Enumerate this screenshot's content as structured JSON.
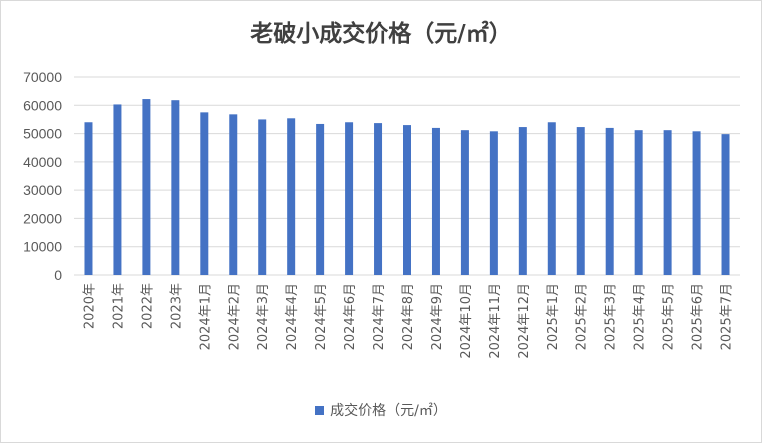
{
  "chart_data": {
    "type": "bar",
    "title": "老破小成交价格（元/㎡）",
    "categories": [
      "2020年",
      "2021年",
      "2022年",
      "2023年",
      "2024年1月",
      "2024年2月",
      "2024年3月",
      "2024年4月",
      "2024年5月",
      "2024年6月",
      "2024年7月",
      "2024年8月",
      "2024年9月",
      "2024年10月",
      "2024年11月",
      "2024年12月",
      "2025年1月",
      "2025年2月",
      "2025年3月",
      "2025年4月",
      "2025年5月",
      "2025年6月",
      "2025年7月"
    ],
    "series": [
      {
        "name": "成交价格（元/㎡）",
        "values": [
          54000,
          60300,
          62200,
          61800,
          57500,
          56800,
          55000,
          55400,
          53400,
          54000,
          53700,
          53000,
          52000,
          51200,
          50800,
          52300,
          54000,
          52300,
          52000,
          51200,
          51200,
          50800,
          49800
        ]
      }
    ],
    "ylim": [
      0,
      70000
    ],
    "yticks": [
      "0",
      "10000",
      "20000",
      "30000",
      "40000",
      "50000",
      "60000",
      "70000"
    ],
    "grid": true,
    "legend_position": "bottom",
    "bar_color": "#4472C4",
    "grid_color": "#d9d9d9"
  }
}
